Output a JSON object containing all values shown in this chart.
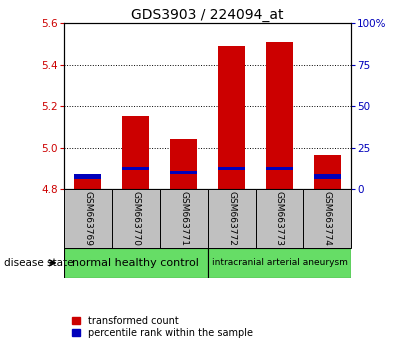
{
  "title": "GDS3903 / 224094_at",
  "samples": [
    "GSM663769",
    "GSM663770",
    "GSM663771",
    "GSM663772",
    "GSM663773",
    "GSM663774"
  ],
  "bar_bottom": 4.8,
  "red_bar_tops": [
    4.87,
    5.155,
    5.04,
    5.49,
    5.51,
    4.965
  ],
  "blue_bottoms": [
    4.852,
    4.892,
    4.872,
    4.892,
    4.892,
    4.852
  ],
  "blue_heights": [
    0.02,
    0.018,
    0.017,
    0.018,
    0.018,
    0.02
  ],
  "ylim_left": [
    4.8,
    5.6
  ],
  "ylim_right": [
    0,
    100
  ],
  "yticks_left": [
    4.8,
    5.0,
    5.2,
    5.4,
    5.6
  ],
  "yticks_right": [
    0,
    25,
    50,
    75,
    100
  ],
  "ytick_labels_right": [
    "0",
    "25",
    "50",
    "75",
    "100%"
  ],
  "red_color": "#CC0000",
  "blue_color": "#0000BB",
  "bar_width": 0.55,
  "group1_label": "normal healthy control",
  "group2_label": "intracranial arterial aneurysm",
  "group1_color": "#66DD66",
  "group2_color": "#66DD66",
  "legend_red_label": "transformed count",
  "legend_blue_label": "percentile rank within the sample",
  "disease_state_label": "disease state",
  "plot_bg_color": "#FFFFFF",
  "sample_box_color": "#C0C0C0",
  "title_fontsize": 10,
  "tick_fontsize": 7.5,
  "sample_fontsize": 6.5,
  "group_fontsize1": 8,
  "group_fontsize2": 6.5,
  "legend_fontsize": 7
}
